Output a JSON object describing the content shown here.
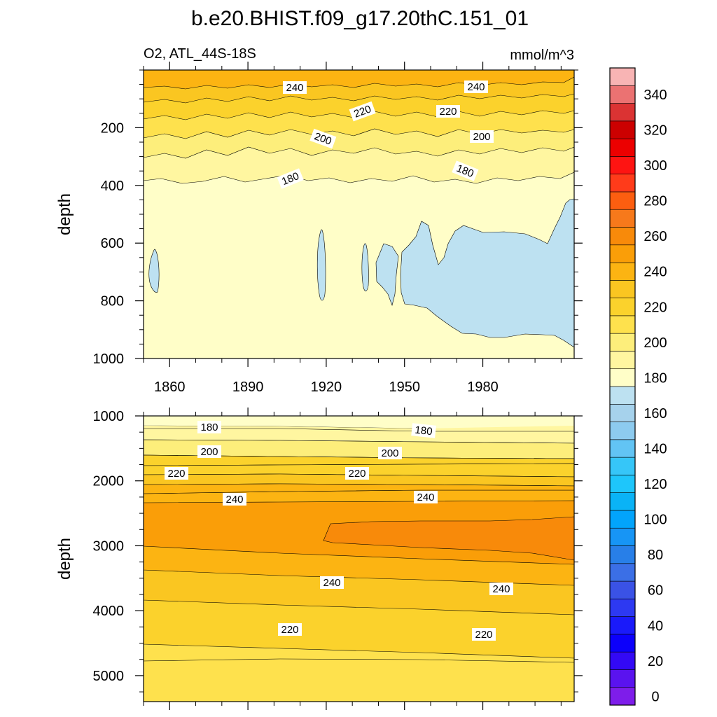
{
  "chart_data": {
    "type": "heatmap",
    "title": "b.e20.BHIST.f09_g17.20thC.151_01",
    "variable_label": "O2, ATL_44S-18S",
    "units": "mmol/m^3",
    "colorbar": {
      "tick_labels": [
        "0",
        "20",
        "40",
        "60",
        "80",
        "100",
        "120",
        "140",
        "160",
        "180",
        "200",
        "220",
        "240",
        "260",
        "280",
        "300",
        "320",
        "340"
      ],
      "levels": [
        0,
        10,
        20,
        30,
        40,
        50,
        60,
        70,
        80,
        90,
        100,
        110,
        120,
        130,
        140,
        150,
        160,
        170,
        180,
        190,
        200,
        210,
        220,
        230,
        240,
        250,
        260,
        270,
        280,
        290,
        300,
        310,
        320,
        330,
        340,
        350
      ],
      "colors": [
        "#7e1dea",
        "#5a13ef",
        "#3309f5",
        "#0c00fb",
        "#1a1afa",
        "#2d39f2",
        "#3a52e6",
        "#3b6fe6",
        "#287fe8",
        "#1795f5",
        "#02a4fc",
        "#0ab3f6",
        "#1ec6fb",
        "#36c6f8",
        "#62c4f4",
        "#8dcbef",
        "#a6d2ec",
        "#bde1f1",
        "#fffec8",
        "#fff6a0",
        "#fdee7b",
        "#fee14d",
        "#fbd22c",
        "#fac621",
        "#fcb412",
        "#fa9e08",
        "#f88a0a",
        "#f7791b",
        "#fc5e10",
        "#ff3b1a",
        "#fe1412",
        "#ec0000",
        "#cc0000",
        "#db3333",
        "#eb7272",
        "#f8b4b4"
      ]
    },
    "panels": [
      {
        "name": "upper",
        "ylabel": "depth",
        "xlim": [
          1850,
          2015
        ],
        "ylim": [
          1000,
          0
        ],
        "x_ticks": [
          1860,
          1890,
          1920,
          1950,
          1980
        ],
        "x_tick_labels": [
          "1860",
          "1890",
          "1920",
          "1950",
          "1980"
        ],
        "y_ticks": [
          200,
          400,
          600,
          800,
          1000
        ],
        "y_tick_labels": [
          "200",
          "400",
          "600",
          "800",
          "1000"
        ],
        "contour_labels": [
          "240",
          "240",
          "220",
          "220",
          "200",
          "200",
          "180",
          "180"
        ]
      },
      {
        "name": "lower",
        "ylabel": "depth",
        "xlim": [
          1850,
          2015
        ],
        "ylim": [
          5400,
          1000
        ],
        "x_ticks": [
          1860,
          1890,
          1920,
          1950,
          1980
        ],
        "y_ticks": [
          1000,
          2000,
          3000,
          4000,
          5000
        ],
        "y_tick_labels": [
          "1000",
          "2000",
          "3000",
          "4000",
          "5000"
        ],
        "contour_labels": [
          "180",
          "180",
          "200",
          "200",
          "220",
          "220",
          "240",
          "240",
          "240",
          "240",
          "220",
          "220"
        ]
      }
    ]
  }
}
